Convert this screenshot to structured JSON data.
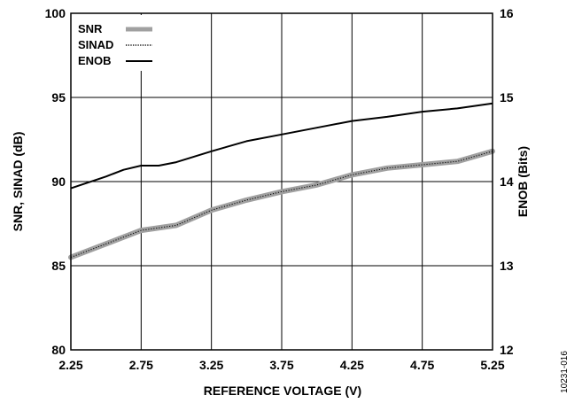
{
  "chart_data": {
    "type": "line",
    "title": "",
    "xlabel": "REFERENCE VOLTAGE (V)",
    "ylabel": "SNR, SINAD (dB)",
    "y2label": "ENOB (Bits)",
    "xlim": [
      2.25,
      5.25
    ],
    "ylim": [
      80,
      100
    ],
    "y2lim": [
      12,
      16
    ],
    "x_ticks": [
      2.25,
      2.75,
      3.25,
      3.75,
      4.25,
      4.75,
      5.25
    ],
    "x_tick_labels": [
      "2.25",
      "2.75",
      "3.25",
      "3.75",
      "4.25",
      "4.75",
      "5.25"
    ],
    "y_ticks": [
      80,
      85,
      90,
      95,
      100
    ],
    "y_tick_labels": [
      "80",
      "85",
      "90",
      "95",
      "100"
    ],
    "y2_ticks": [
      12,
      13,
      14,
      15,
      16
    ],
    "y2_tick_labels": [
      "12",
      "13",
      "14",
      "15",
      "16"
    ],
    "grid": true,
    "legend_position": "top-left",
    "series": [
      {
        "name": "SNR",
        "axis": "left",
        "color": "#a0a0a0",
        "style": "thick-gray",
        "x": [
          2.25,
          2.5,
          2.75,
          3.0,
          3.25,
          3.5,
          3.75,
          4.0,
          4.25,
          4.5,
          4.75,
          5.0,
          5.25
        ],
        "values": [
          85.5,
          86.3,
          87.1,
          87.4,
          88.3,
          88.9,
          89.4,
          89.8,
          90.4,
          90.8,
          91.0,
          91.2,
          91.8
        ]
      },
      {
        "name": "SINAD",
        "axis": "left",
        "color": "#000000",
        "style": "dotted",
        "x": [
          2.25,
          2.5,
          2.75,
          3.0,
          3.25,
          3.5,
          3.75,
          4.0,
          4.25,
          4.5,
          4.75,
          5.0,
          5.25
        ],
        "values": [
          85.5,
          86.3,
          87.1,
          87.4,
          88.3,
          88.9,
          89.4,
          89.8,
          90.4,
          90.8,
          91.0,
          91.2,
          91.8
        ]
      },
      {
        "name": "ENOB",
        "axis": "right",
        "color": "#000000",
        "style": "solid",
        "x": [
          2.25,
          2.5,
          2.625,
          2.75,
          2.875,
          3.0,
          3.25,
          3.5,
          3.75,
          4.0,
          4.25,
          4.5,
          4.75,
          5.0,
          5.25
        ],
        "values": [
          13.92,
          14.06,
          14.14,
          14.19,
          14.19,
          14.23,
          14.36,
          14.48,
          14.56,
          14.64,
          14.72,
          14.77,
          14.83,
          14.87,
          14.93
        ]
      }
    ]
  },
  "figure_id": "10231-016"
}
